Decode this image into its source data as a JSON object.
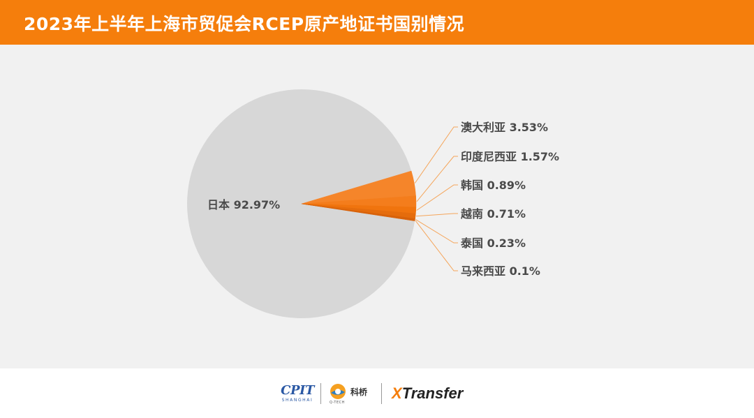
{
  "header": {
    "title": "2023年上半年上海市贸促会RCEP原产地证书国别情况"
  },
  "colors": {
    "header_bg": "#f57e0c",
    "panel_bg": "#f1f1f1",
    "dominant_slice": "#d7d7d7",
    "slice_shades": [
      "#f5852a",
      "#f47d1c",
      "#f0740e",
      "#e56c0c",
      "#d8620a"
    ],
    "leader_line": "#f5a55a",
    "label_text": "#4a4a4a"
  },
  "chart_data": {
    "type": "pie",
    "title": "2023年上半年上海市贸促会RCEP原产地证书国别情况",
    "slices": [
      {
        "label": "日本",
        "value": 92.97,
        "display": "日本 92.97%"
      },
      {
        "label": "澳大利亚",
        "value": 3.53,
        "display": "澳大利亚 3.53%"
      },
      {
        "label": "印度尼西亚",
        "value": 1.57,
        "display": "印度尼西亚 1.57%"
      },
      {
        "label": "韩国",
        "value": 0.89,
        "display": "韩国 0.89%"
      },
      {
        "label": "越南",
        "value": 0.71,
        "display": "越南 0.71%"
      },
      {
        "label": "泰国",
        "value": 0.23,
        "display": "泰国 0.23%"
      },
      {
        "label": "马来西亚",
        "value": 0.1,
        "display": "马来西亚 0.1%"
      }
    ],
    "unit": "%"
  },
  "footer": {
    "logos": [
      {
        "name": "CPIT",
        "text": "CPIT",
        "subtext": "SHANGHAI"
      },
      {
        "name": "科桥",
        "text": "科桥",
        "subtext": "Q-TECH"
      },
      {
        "name": "XTransfer",
        "prefix": "X",
        "text": "Transfer"
      }
    ]
  }
}
